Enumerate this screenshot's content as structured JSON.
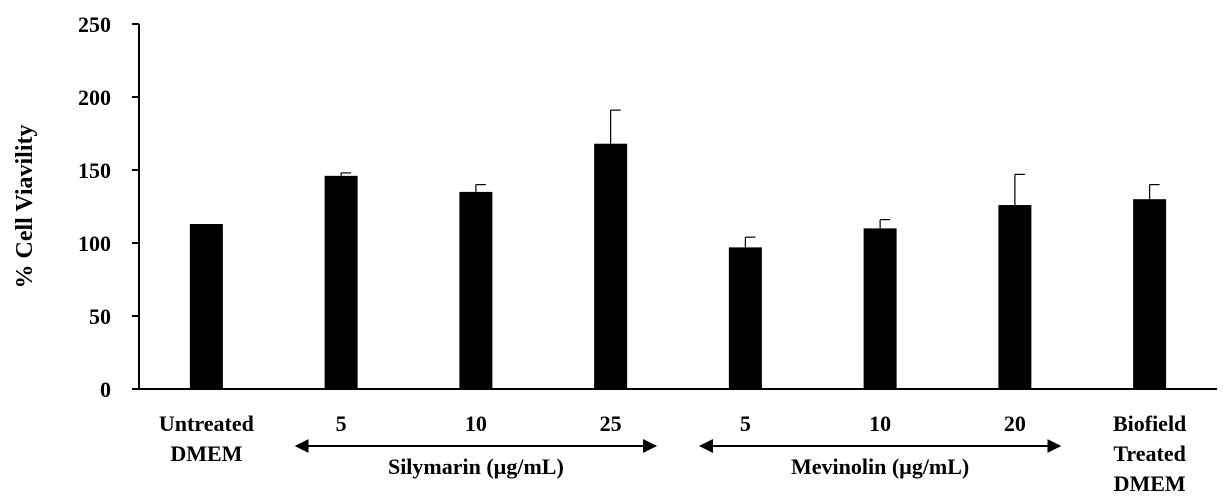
{
  "chart_data": {
    "type": "bar",
    "ylabel": "% Cell Viavility",
    "xlabel": "",
    "ylim": [
      0,
      250
    ],
    "yticks": [
      0,
      50,
      100,
      150,
      200,
      250
    ],
    "categories": [
      {
        "lines": [
          "Untreated",
          "DMEM"
        ]
      },
      {
        "lines": [
          "5"
        ]
      },
      {
        "lines": [
          "10"
        ]
      },
      {
        "lines": [
          "25"
        ]
      },
      {
        "lines": [
          "5"
        ]
      },
      {
        "lines": [
          "10"
        ]
      },
      {
        "lines": [
          "20"
        ]
      },
      {
        "lines": [
          "Biofield",
          "Treated",
          "DMEM"
        ]
      }
    ],
    "values": [
      113,
      146,
      135,
      168,
      97,
      110,
      126,
      130
    ],
    "error": [
      0,
      2,
      5,
      23,
      7,
      6,
      21,
      10
    ],
    "bar_color": "#000000",
    "groups": [
      {
        "label": "Silymarin  (µg/mL)",
        "from": 1,
        "to": 3
      },
      {
        "label": "Mevinolin (µg/mL)",
        "from": 4,
        "to": 6
      }
    ],
    "grid": false,
    "legend": "none"
  }
}
